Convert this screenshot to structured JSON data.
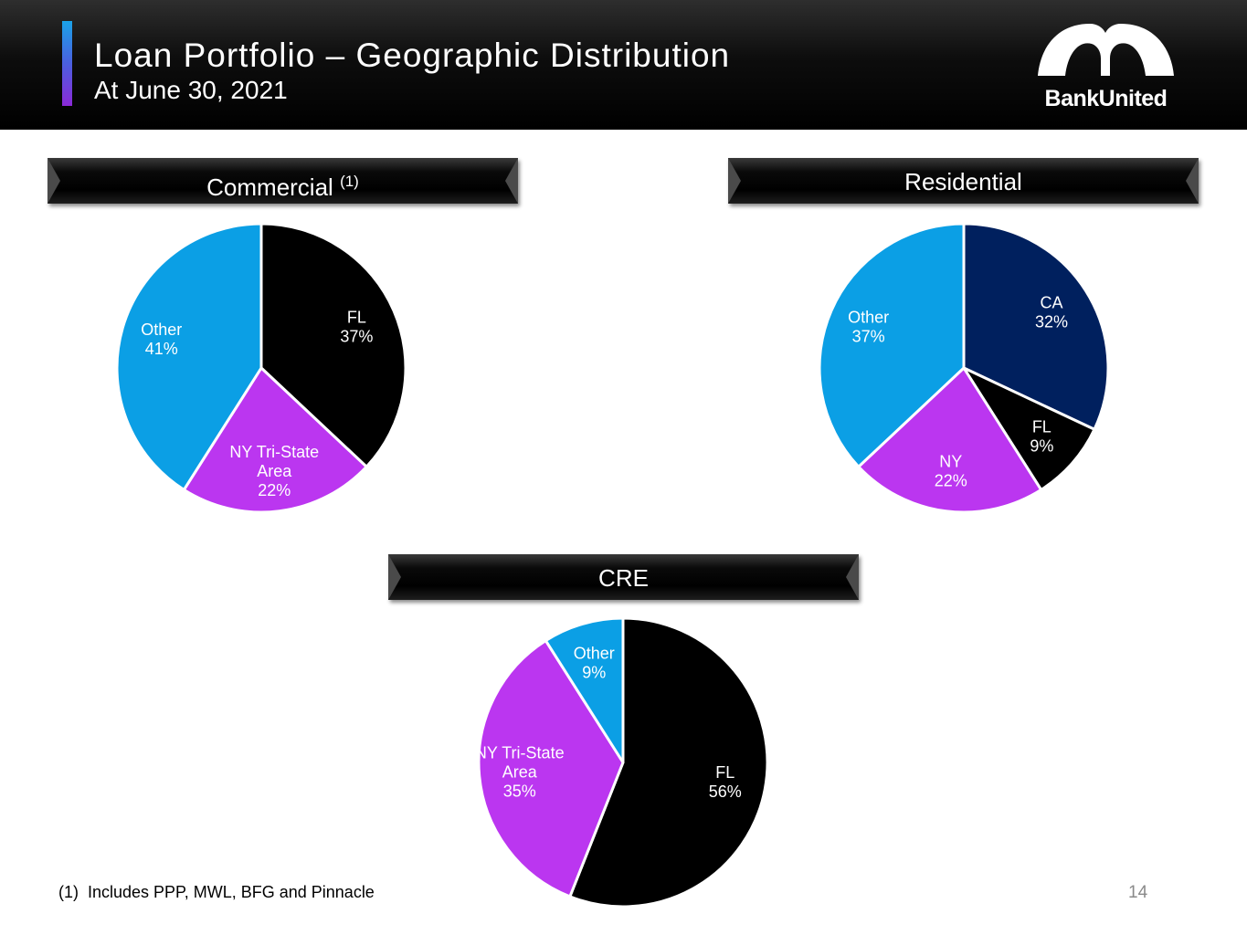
{
  "header": {
    "title": "Loan Portfolio – Geographic Distribution",
    "subtitle": "At June 30, 2021",
    "logo_text": "BankUnited"
  },
  "footnote": {
    "mark": "(1)",
    "text": "Includes PPP, MWL, BFG and Pinnacle"
  },
  "page_number": "14",
  "colors": {
    "FL": "#000000",
    "NY": "#bb36f0",
    "Other": "#0b9fe5",
    "CA": "#00205e"
  },
  "chart_data": [
    {
      "type": "pie",
      "title": "Commercial",
      "title_note": "(1)",
      "slices": [
        {
          "label": [
            "FL",
            "37%"
          ],
          "value": 37,
          "color": "#000000"
        },
        {
          "label": [
            "NY Tri-State",
            "Area",
            "22%"
          ],
          "value": 22,
          "color": "#bb36f0"
        },
        {
          "label": [
            "Other",
            "41%"
          ],
          "value": 41,
          "color": "#0b9fe5"
        }
      ]
    },
    {
      "type": "pie",
      "title": "Residential",
      "slices": [
        {
          "label": [
            "CA",
            "32%"
          ],
          "value": 32,
          "color": "#00205e"
        },
        {
          "label": [
            "FL",
            "9%"
          ],
          "value": 9,
          "color": "#000000"
        },
        {
          "label": [
            "NY",
            "22%"
          ],
          "value": 22,
          "color": "#bb36f0"
        },
        {
          "label": [
            "Other",
            "37%"
          ],
          "value": 37,
          "color": "#0b9fe5"
        }
      ]
    },
    {
      "type": "pie",
      "title": "CRE",
      "slices": [
        {
          "label": [
            "FL",
            "56%"
          ],
          "value": 56,
          "color": "#000000"
        },
        {
          "label": [
            "NY Tri-State",
            "Area",
            "35%"
          ],
          "value": 35,
          "color": "#bb36f0"
        },
        {
          "label": [
            "Other",
            "9%"
          ],
          "value": 9,
          "color": "#0b9fe5"
        }
      ]
    }
  ]
}
